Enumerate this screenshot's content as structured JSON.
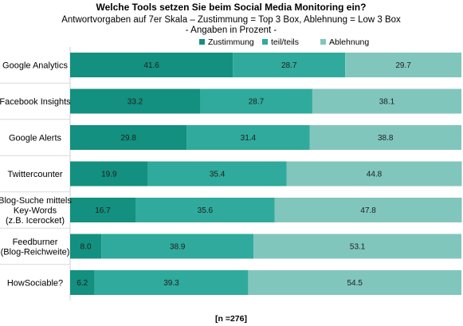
{
  "chart_data": {
    "type": "bar",
    "orientation": "horizontal",
    "stacked": true,
    "title": "Welche Tools setzen Sie beim Social Media Monitoring ein?",
    "subtitle_lines": [
      "Antwortvorgaben auf 7er Skala – Zustimmung = Top 3 Box, Ablehnung = Low 3 Box",
      "- Angaben in Prozent -"
    ],
    "categories": [
      [
        "Google Analytics"
      ],
      [
        "Facebook Insights"
      ],
      [
        "Google Alerts"
      ],
      [
        "Twittercounter"
      ],
      [
        "Blog-Suche mittels",
        "Key-Words",
        "(z.B. Icerocket)"
      ],
      [
        "Feedburner",
        "(Blog-Reichweite)"
      ],
      [
        "HowSociable?"
      ]
    ],
    "series": [
      {
        "name": "Zustimmung",
        "color": "#13907f",
        "values": [
          41.6,
          33.2,
          29.8,
          19.9,
          16.7,
          8.0,
          6.2
        ]
      },
      {
        "name": "teil/teils",
        "color": "#30aa9c",
        "values": [
          28.7,
          28.7,
          31.4,
          35.4,
          35.6,
          38.9,
          39.3
        ]
      },
      {
        "name": "Ablehnung",
        "color": "#81c6bd",
        "values": [
          29.7,
          38.1,
          38.8,
          44.8,
          47.8,
          53.1,
          54.5
        ]
      }
    ],
    "xlim": [
      0,
      100
    ],
    "legend_position": "top",
    "note": "[n =276]"
  }
}
